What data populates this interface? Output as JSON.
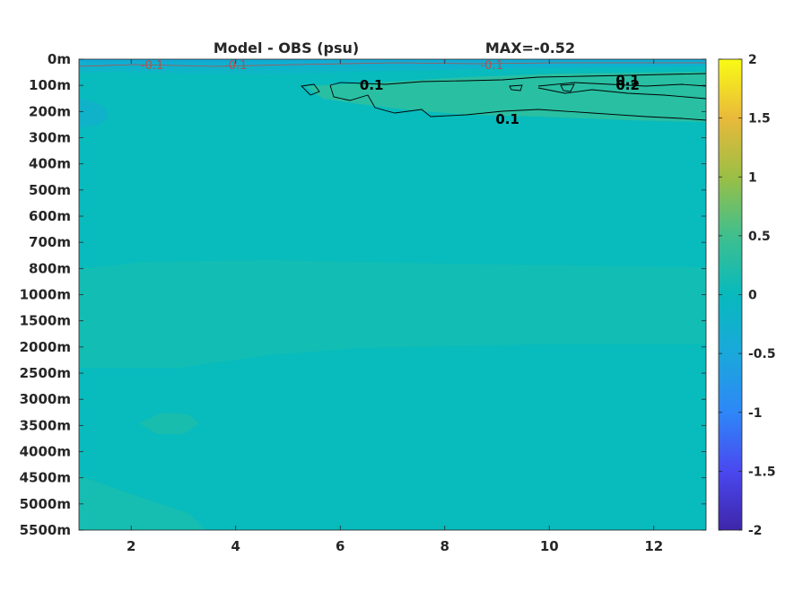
{
  "chart_data": {
    "type": "heatmap",
    "title_left": "Model - OBS (psu)",
    "title_right": "MAX=-0.52",
    "x_ticks": [
      2,
      4,
      6,
      8,
      10,
      12
    ],
    "xlim": [
      1,
      13
    ],
    "y_ticks": [
      "0m",
      "100m",
      "200m",
      "300m",
      "400m",
      "500m",
      "600m",
      "700m",
      "800m",
      "1000m",
      "1500m",
      "2000m",
      "2500m",
      "3000m",
      "3500m",
      "4000m",
      "4500m",
      "5000m",
      "5500m"
    ],
    "colorbar": {
      "min": -2,
      "max": 2,
      "ticks": [
        "2",
        "1.5",
        "1",
        "0.5",
        "0",
        "-0.5",
        "-1",
        "-1.5",
        "-2"
      ],
      "colormap": "parula"
    },
    "contour_labels": [
      {
        "text": "0.1",
        "x": 6.6,
        "y": "100m",
        "color": "#000000"
      },
      {
        "text": "0.1",
        "x": 11.5,
        "y": "80m",
        "color": "#000000"
      },
      {
        "text": "0.2",
        "x": 11.5,
        "y": "100m",
        "color": "#000000"
      },
      {
        "text": "0.1",
        "x": 9.2,
        "y": "230m",
        "color": "#000000"
      },
      {
        "text": "-0.1",
        "x": 2.4,
        "y": "20m",
        "color": "#b0524c"
      },
      {
        "text": "-0.1",
        "x": 4.0,
        "y": "20m",
        "color": "#b0524c"
      },
      {
        "text": "-0.1",
        "x": 8.9,
        "y": "20m",
        "color": "#b0524c"
      }
    ],
    "field_description": "Near-zero salinity differences everywhere (values roughly 0 to 0.2); slightly positive band 100-300m at months 6-13, weak negatives near the surface."
  }
}
